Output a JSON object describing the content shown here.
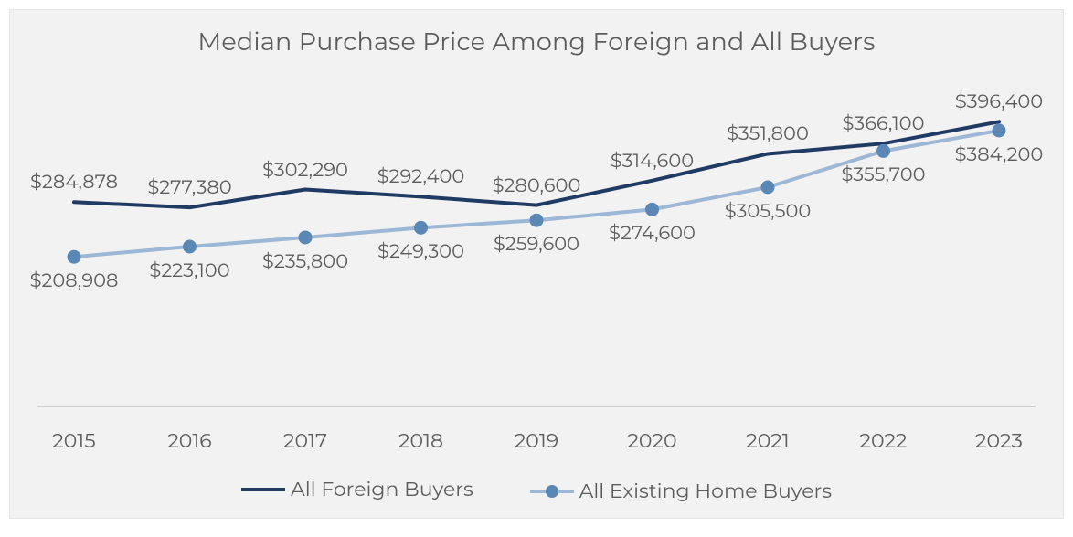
{
  "chart": {
    "type": "line",
    "title": "Median Purchase Price Among Foreign and All Buyers",
    "title_fontsize": 27,
    "title_color": "#5c5c5c",
    "background_color": "#f2f2f2",
    "page_background_color": "#ffffff",
    "border_color": "#e5e5e5",
    "font_family": "Montserrat",
    "label_fontsize": 21,
    "tick_fontsize": 22,
    "text_color": "#5c5c5c",
    "grid_color": "#cfcfcf",
    "x_categories": [
      "2015",
      "2016",
      "2017",
      "2018",
      "2019",
      "2020",
      "2021",
      "2022",
      "2023"
    ],
    "ylim": [
      0,
      450000
    ],
    "gridlines_y": [
      0
    ],
    "series": [
      {
        "name": "All Foreign Buyers",
        "color": "#1f3a63",
        "line_width": 4,
        "marker": "none",
        "values": [
          284878,
          277380,
          302290,
          292400,
          280600,
          314600,
          351800,
          366100,
          396400
        ],
        "labels": [
          "$284,878",
          "$277,380",
          "$302,290",
          "$292,400",
          "$280,600",
          "$314,600",
          "$351,800",
          "$366,100",
          "$396,400"
        ],
        "label_position": "above"
      },
      {
        "name": "All Existing Home Buyers",
        "color": "#9db8d6",
        "marker_fill": "#5b87b5",
        "line_width": 4,
        "marker": "circle",
        "marker_size": 14,
        "values": [
          208908,
          223100,
          235800,
          249300,
          259600,
          274600,
          305500,
          355700,
          384200
        ],
        "labels": [
          "$208,908",
          "$223,100",
          "$235,800",
          "$249,300",
          "$259,600",
          "$274,600",
          "$305,500",
          "$355,700",
          "$384,200"
        ],
        "label_position": "below"
      }
    ],
    "legend": {
      "position": "bottom",
      "items": [
        {
          "label": "All Foreign Buyers",
          "color": "#1f3a63",
          "marker": "none"
        },
        {
          "label": "All Existing Home Buyers",
          "color": "#9db8d6",
          "marker_fill": "#5b87b5",
          "marker": "circle"
        }
      ]
    }
  }
}
